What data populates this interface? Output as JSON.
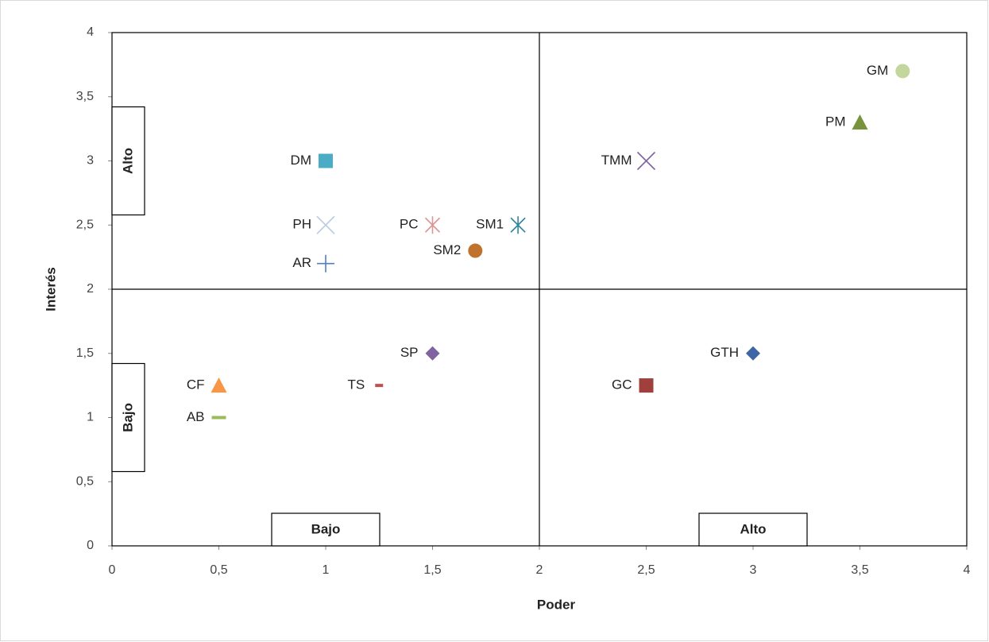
{
  "chart_data": {
    "type": "scatter",
    "x_label": "Poder",
    "y_label": "Interés",
    "xlim": [
      0,
      4
    ],
    "ylim": [
      0,
      4
    ],
    "xticks": [
      0,
      {
        "value": 0.5,
        "label": "0,5"
      },
      1,
      {
        "value": 1.5,
        "label": "1,5"
      },
      2,
      {
        "value": 2.5,
        "label": "2,5"
      },
      3,
      {
        "value": 3.5,
        "label": "3,5"
      },
      4
    ],
    "yticks": [
      0,
      {
        "value": 0.5,
        "label": "0,5"
      },
      1,
      {
        "value": 1.5,
        "label": "1,5"
      },
      2,
      {
        "value": 2.5,
        "label": "2,5"
      },
      3,
      {
        "value": 3.5,
        "label": "3,5"
      },
      4
    ],
    "dividers": {
      "x": 2,
      "y": 2
    },
    "quadrant_labels": {
      "x": [
        "Bajo",
        "Alto"
      ],
      "y": [
        "Bajo",
        "Alto"
      ]
    },
    "series": [
      {
        "name": "GM",
        "color": "#c3d69b",
        "marker": "circle",
        "x": [
          3.7
        ],
        "values": [
          3.7
        ]
      },
      {
        "name": "PM",
        "color": "#77933c",
        "marker": "triangle",
        "x": [
          3.5
        ],
        "values": [
          3.3
        ]
      },
      {
        "name": "TMM",
        "color": "#8064a2",
        "marker": "x",
        "x": [
          2.5
        ],
        "values": [
          3
        ]
      },
      {
        "name": "DM",
        "color": "#4bacc6",
        "marker": "square",
        "x": [
          1
        ],
        "values": [
          3
        ]
      },
      {
        "name": "PH",
        "color": "#b9cde5",
        "marker": "x",
        "x": [
          1
        ],
        "values": [
          2.5
        ]
      },
      {
        "name": "AR",
        "color": "#4f81bd",
        "marker": "plus",
        "x": [
          1
        ],
        "values": [
          2.2
        ]
      },
      {
        "name": "PC",
        "color": "#d99694",
        "marker": "star",
        "x": [
          1.5
        ],
        "values": [
          2.5
        ]
      },
      {
        "name": "SM1",
        "color": "#31859c",
        "marker": "star",
        "x": [
          1.9
        ],
        "values": [
          2.5
        ]
      },
      {
        "name": "SM2",
        "color": "#c0732d",
        "marker": "circle",
        "x": [
          1.7
        ],
        "values": [
          2.3
        ]
      },
      {
        "name": "SP",
        "color": "#8064a2",
        "marker": "diamond",
        "x": [
          1.5
        ],
        "values": [
          1.5
        ]
      },
      {
        "name": "TS",
        "color": "#c0504d",
        "marker": "dash",
        "x": [
          1.25
        ],
        "values": [
          1.25
        ]
      },
      {
        "name": "CF",
        "color": "#f79646",
        "marker": "triangle",
        "x": [
          0.5
        ],
        "values": [
          1.25
        ]
      },
      {
        "name": "AB",
        "color": "#9bbb59",
        "marker": "dash",
        "x": [
          0.5
        ],
        "values": [
          1
        ]
      },
      {
        "name": "GTH",
        "color": "#3c66a4",
        "marker": "diamond",
        "x": [
          3
        ],
        "values": [
          1.5
        ]
      },
      {
        "name": "GC",
        "color": "#a0403c",
        "marker": "square",
        "x": [
          2.5
        ],
        "values": [
          1.25
        ]
      }
    ]
  }
}
